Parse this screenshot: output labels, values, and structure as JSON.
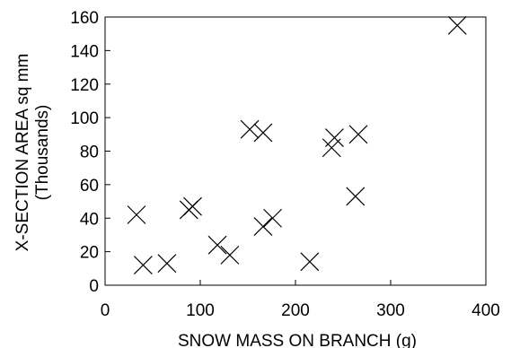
{
  "chart_data": {
    "type": "scatter",
    "xlabel": "SNOW MASS ON BRANCH (g)",
    "ylabel_line1": "X-SECTION AREA sq mm",
    "ylabel_line2": "(Thousands)",
    "xlim": [
      0,
      400
    ],
    "ylim": [
      0,
      160
    ],
    "x_ticks": [
      0,
      100,
      200,
      300,
      400
    ],
    "y_ticks": [
      0,
      20,
      40,
      60,
      80,
      100,
      120,
      140,
      160
    ],
    "grid": false,
    "marker": "x",
    "series": [
      {
        "points": [
          {
            "x": 33,
            "y": 42
          },
          {
            "x": 40,
            "y": 12
          },
          {
            "x": 65,
            "y": 13
          },
          {
            "x": 88,
            "y": 45
          },
          {
            "x": 92,
            "y": 47
          },
          {
            "x": 118,
            "y": 24
          },
          {
            "x": 131,
            "y": 18
          },
          {
            "x": 152,
            "y": 93
          },
          {
            "x": 166,
            "y": 35
          },
          {
            "x": 166,
            "y": 91
          },
          {
            "x": 176,
            "y": 40
          },
          {
            "x": 215,
            "y": 14
          },
          {
            "x": 238,
            "y": 82
          },
          {
            "x": 241,
            "y": 88
          },
          {
            "x": 263,
            "y": 53
          },
          {
            "x": 266,
            "y": 90
          },
          {
            "x": 370,
            "y": 155
          }
        ]
      }
    ]
  }
}
